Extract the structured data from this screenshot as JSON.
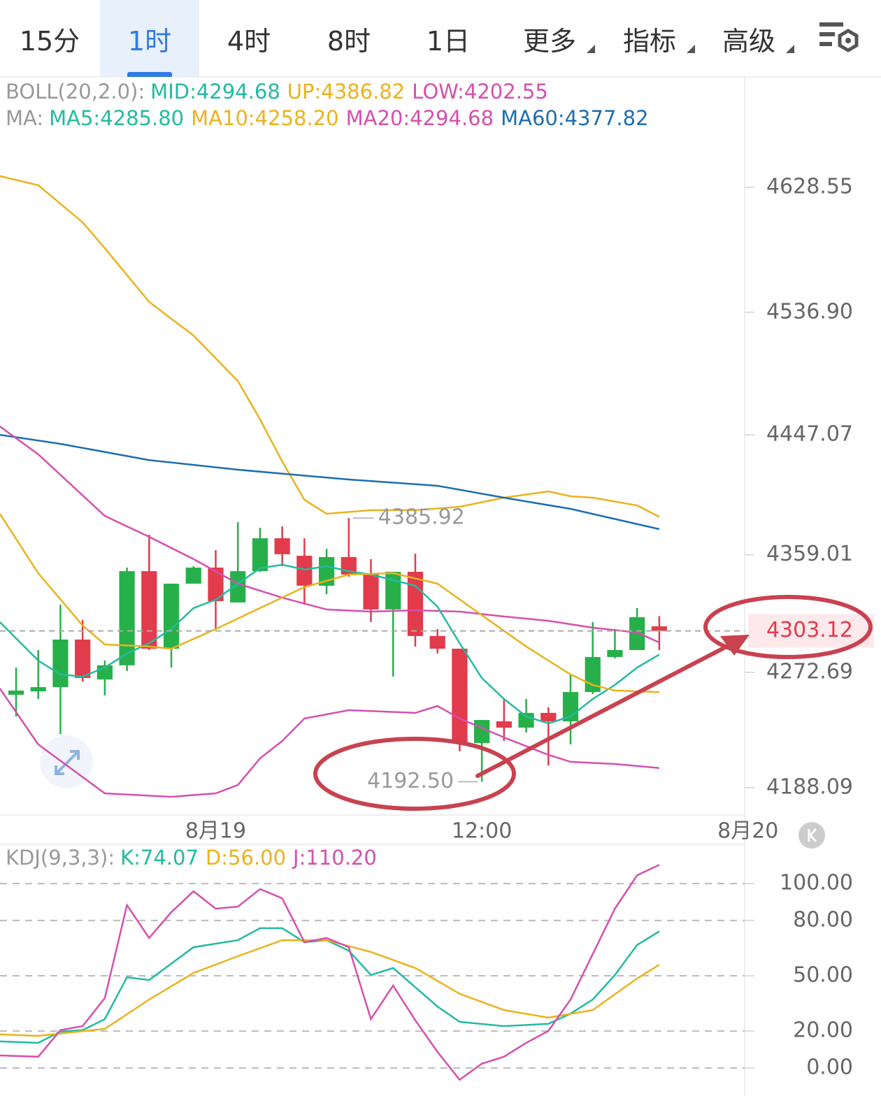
{
  "tabs": [
    {
      "text": "15分"
    },
    {
      "text": "1时"
    },
    {
      "text": "4时"
    },
    {
      "text": "8时"
    },
    {
      "text": "1日"
    },
    {
      "text": "更多",
      "dropdown": true
    },
    {
      "text": "指标",
      "dropdown": true
    },
    {
      "text": "高级",
      "dropdown": true
    }
  ],
  "active_tab": 1,
  "chart_data": [
    {
      "type": "candlestick",
      "legend_rows": [
        {
          "title": "BOLL(20,2.0):",
          "items": [
            {
              "text": "MID:4294.68",
              "color": "#22bba0"
            },
            {
              "text": "UP:4386.82",
              "color": "#ebb21c"
            },
            {
              "text": "LOW:4202.55",
              "color": "#d64fae"
            }
          ]
        },
        {
          "title": "MA:",
          "items": [
            {
              "text": "MA5:4285.80",
              "color": "#22bba0"
            },
            {
              "text": "MA10:4258.20",
              "color": "#ebb21c"
            },
            {
              "text": "MA20:4294.68",
              "color": "#d64fae"
            },
            {
              "text": "MA60:4377.82",
              "color": "#1c6eb0"
            }
          ]
        }
      ],
      "up_color": "#27b04a",
      "down_color": "#e23b4b",
      "x": [
        0,
        1,
        2,
        3,
        4,
        5,
        6,
        7,
        8,
        9,
        10,
        11,
        12,
        13,
        14,
        15,
        16,
        17,
        18,
        19,
        20,
        21,
        22,
        23,
        24,
        25,
        26,
        27,
        28,
        29
      ],
      "open": [
        4256.3,
        4258.8,
        4261.9,
        4296.8,
        4267.5,
        4277.9,
        4347.0,
        4290.1,
        4337.8,
        4349.6,
        4324.0,
        4347.0,
        4371.1,
        4358.3,
        4336.3,
        4357.3,
        4344.5,
        4318.9,
        4346.5,
        4299.4,
        4290.1,
        4220.9,
        4236.8,
        4232.2,
        4243.0,
        4236.8,
        4258.3,
        4284.0,
        4289.1,
        4306.5
      ],
      "close": [
        4259.4,
        4261.9,
        4296.8,
        4268.6,
        4277.9,
        4347.0,
        4290.1,
        4337.8,
        4349.6,
        4325.0,
        4347.0,
        4371.1,
        4359.4,
        4336.3,
        4357.3,
        4344.5,
        4318.9,
        4346.5,
        4299.4,
        4290.1,
        4220.9,
        4237.8,
        4232.2,
        4243.0,
        4236.8,
        4258.3,
        4284.0,
        4289.1,
        4313.2,
        4303.12
      ],
      "high": [
        4276.3,
        4289.1,
        4322.4,
        4311.2,
        4281.4,
        4349.6,
        4373.7,
        4337.8,
        4350.6,
        4362.4,
        4383.0,
        4378.8,
        4380.0,
        4371.1,
        4363.4,
        4385.92,
        4355.8,
        4346.5,
        4359.8,
        4304.5,
        4290.1,
        4237.8,
        4253.2,
        4253.2,
        4247.1,
        4271.2,
        4309.6,
        4304.5,
        4319.9,
        4314.0
      ],
      "low": [
        4240.4,
        4253.2,
        4227.5,
        4266.0,
        4255.8,
        4273.7,
        4289.1,
        4276.3,
        4337.8,
        4304.5,
        4324.0,
        4346.5,
        4350.6,
        4322.4,
        4330.1,
        4342.9,
        4309.6,
        4269.6,
        4291.7,
        4286.6,
        4214.8,
        4192.5,
        4222.4,
        4228.6,
        4204.5,
        4219.9,
        4256.8,
        4283.0,
        4289.1,
        4289.1
      ],
      "series": [
        {
          "name": "UP",
          "color": "#ebb21c",
          "x": [
            -0.73,
            1,
            3,
            4,
            6,
            8,
            10,
            11,
            12,
            13,
            14,
            16,
            18,
            20,
            22,
            24,
            25,
            26,
            28,
            29
          ],
          "values": [
            4636.8,
            4630.1,
            4602.9,
            4583.9,
            4544.5,
            4519.8,
            4486.5,
            4458.3,
            4427.5,
            4399.3,
            4389.1,
            4391.7,
            4391.7,
            4394.2,
            4400.9,
            4405.5,
            4401.9,
            4400.9,
            4395.2,
            4386.82
          ]
        },
        {
          "name": "MA60",
          "color": "#1c6eb0",
          "x": [
            -0.73,
            2,
            6,
            10,
            15,
            19,
            22,
            25,
            29
          ],
          "values": [
            4447.0,
            4440.4,
            4428.5,
            4421.4,
            4414.2,
            4409.6,
            4400.9,
            4392.7,
            4377.82
          ]
        },
        {
          "name": "MA20",
          "color": "#d64fae",
          "x": [
            -0.73,
            1,
            4,
            6,
            8,
            10,
            12,
            14,
            16,
            18,
            20,
            22,
            24,
            26,
            28,
            29
          ],
          "values": [
            4453.2,
            4432.7,
            4387.5,
            4372.2,
            4355.8,
            4337.8,
            4327.5,
            4318.9,
            4317.3,
            4318.3,
            4317.3,
            4313.7,
            4310.6,
            4305.5,
            4301.9,
            4294.68
          ]
        },
        {
          "name": "LOW",
          "color": "#d64fae",
          "x": [
            -0.73,
            1,
            4,
            7,
            9,
            10,
            11,
            12,
            13,
            15,
            18,
            19,
            20,
            22,
            24,
            25,
            27,
            29
          ],
          "values": [
            4260.9,
            4219.9,
            4184.0,
            4181.4,
            4184.0,
            4190.1,
            4209.6,
            4222.4,
            4238.9,
            4245.0,
            4243.0,
            4248.1,
            4238.9,
            4225.0,
            4212.2,
            4207.1,
            4205.5,
            4202.55
          ]
        },
        {
          "name": "MA5",
          "color": "#22bba0",
          "x": [
            -0.73,
            1,
            2,
            3,
            4,
            5,
            6,
            7,
            8,
            9,
            10,
            11,
            12,
            13,
            14,
            15,
            16,
            17,
            18,
            19,
            20,
            21,
            22,
            23,
            24,
            25,
            26,
            27,
            28,
            29
          ],
          "values": [
            4309.6,
            4281.4,
            4271.2,
            4269.6,
            4276.3,
            4286.6,
            4294.2,
            4304.5,
            4319.9,
            4326.0,
            4337.8,
            4349.1,
            4351.7,
            4348.1,
            4350.6,
            4347.0,
            4344.5,
            4340.4,
            4336.3,
            4320.9,
            4294.2,
            4268.6,
            4253.2,
            4240.4,
            4235.3,
            4240.4,
            4253.2,
            4263.5,
            4276.3,
            4285.8
          ]
        },
        {
          "name": "MA10",
          "color": "#ebb21c",
          "x": [
            -0.73,
            1,
            3,
            4,
            6,
            7,
            9,
            11,
            13,
            15,
            17,
            19,
            21,
            23,
            24,
            25,
            26,
            27,
            29
          ],
          "values": [
            4389.1,
            4345.5,
            4307.1,
            4293.2,
            4291.7,
            4290.1,
            4304.5,
            4319.9,
            4335.3,
            4344.5,
            4345.5,
            4337.8,
            4314.7,
            4291.7,
            4281.4,
            4271.2,
            4263.5,
            4259.4,
            4258.2
          ]
        }
      ],
      "annotations": [
        {
          "value": 4385.92
        },
        {
          "value": 4192.5,
          "label": "4192.50"
        }
      ],
      "xlim": [
        -0.725,
        32.85
      ],
      "xticks": [
        {
          "value": 9,
          "label": "8月19"
        },
        {
          "value": 21,
          "label": "12:00"
        },
        {
          "value": 33,
          "label": "8月20"
        }
      ],
      "ylim": [
        4168.6,
        4666.0
      ],
      "yticks": [
        4628.55,
        {
          "value": 4536.9,
          "label": "4536.90"
        },
        4447.07,
        4359.01,
        4272.69,
        4188.09
      ],
      "grid": false
    },
    {
      "type": "line",
      "legend_rows": [
        {
          "title": "KDJ(9,3,3):",
          "items": [
            {
              "text": "K:74.07",
              "color": "#22bba0"
            },
            {
              "text": "D:56.00",
              "color": "#ebb21c"
            },
            {
              "text": "J:110.20",
              "color": "#d64fae"
            }
          ]
        }
      ],
      "series": [
        {
          "name": "K",
          "color": "#22bba0",
          "x": [
            -0.73,
            1,
            2,
            3,
            4,
            5,
            6,
            8,
            10,
            11,
            12,
            13,
            14,
            15,
            16,
            17,
            19,
            20,
            22,
            24,
            25,
            26,
            27,
            28,
            29
          ],
          "values": [
            14.4,
            13.6,
            19.7,
            20.5,
            26.5,
            49.2,
            47.7,
            65.5,
            69.3,
            75.8,
            75.8,
            68.2,
            69.3,
            63.6,
            50.4,
            54.2,
            33.3,
            25.0,
            22.7,
            23.9,
            29.5,
            37.1,
            50.4,
            66.7,
            74.07
          ]
        },
        {
          "name": "D",
          "color": "#ebb21c",
          "x": [
            -0.73,
            1,
            4,
            6,
            8,
            10,
            12,
            14,
            16,
            18,
            20,
            22,
            24,
            26,
            28,
            29
          ],
          "values": [
            18.2,
            17.4,
            21.2,
            37.1,
            51.5,
            60.6,
            69.3,
            69.3,
            62.9,
            54.2,
            40.2,
            31.4,
            27.3,
            31.4,
            48.5,
            56.0
          ]
        },
        {
          "name": "J",
          "color": "#d64fae",
          "x": [
            -0.73,
            1,
            2,
            3,
            4,
            5,
            6,
            7,
            8,
            9,
            10,
            11,
            12,
            13,
            14,
            15,
            16,
            17,
            18,
            19,
            20,
            21,
            22,
            23,
            24,
            25,
            26,
            27,
            28,
            29
          ],
          "values": [
            6.8,
            6.1,
            20.5,
            22.7,
            37.9,
            88.3,
            70.5,
            84.5,
            95.8,
            86.4,
            87.5,
            97.0,
            92.0,
            68.2,
            70.5,
            65.5,
            26.5,
            44.7,
            25.8,
            8.7,
            -6.4,
            2.3,
            6.1,
            13.6,
            20.1,
            37.1,
            61.7,
            86.4,
            104.5,
            110.2
          ]
        }
      ],
      "xlim": [
        -0.725,
        32.85
      ],
      "ylim": [
        -15.2,
        118.6
      ],
      "yticks": [
        {
          "value": 100,
          "label": "100.00"
        },
        {
          "value": 80,
          "label": "80.00"
        },
        {
          "value": 50,
          "label": "50.00"
        },
        {
          "value": 20,
          "label": "20.00"
        },
        {
          "value": 0,
          "label": "0.00"
        }
      ],
      "grid": true
    }
  ]
}
